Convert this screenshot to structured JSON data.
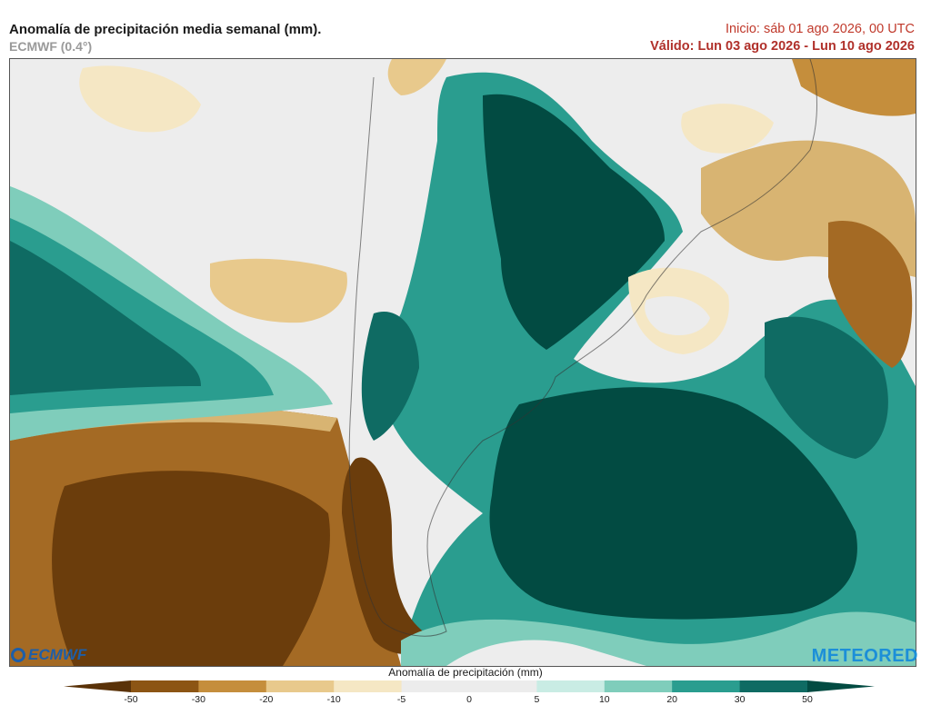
{
  "header": {
    "title": "Anomalía de precipitación media semanal (mm).",
    "model": "ECMWF (0.4°)",
    "init": "Inicio:  sáb 01 ago 2026, 00 UTC",
    "valid": "Válido: Lun 03 ago 2026 - Lun 10 ago 2026"
  },
  "logos": {
    "left": "ECMWF",
    "right": "METEORED"
  },
  "colorbar": {
    "label": "Anomalía de precipitación (mm)",
    "ticks": [
      "-50",
      "-30",
      "-20",
      "-10",
      "-5",
      "0",
      "5",
      "10",
      "20",
      "30",
      "50"
    ],
    "colors": [
      "#5a3208",
      "#8c5514",
      "#c58e3c",
      "#e8c98c",
      "#f5e7c4",
      "#ececec",
      "#ececec",
      "#c9ece4",
      "#7fcdbb",
      "#2a9d8f",
      "#0f6b63",
      "#024b42"
    ]
  }
}
